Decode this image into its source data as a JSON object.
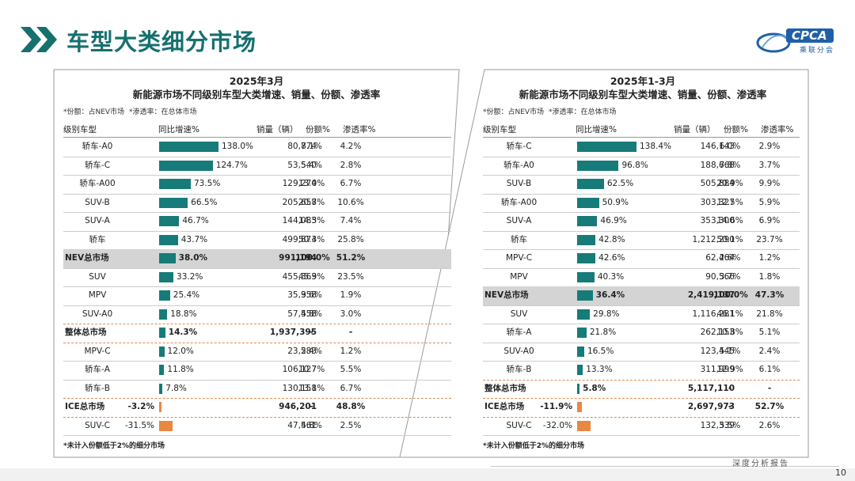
{
  "page": {
    "title": "车型大类细分市场",
    "logo_text": "CPCA",
    "logo_sub": "乘联分会",
    "footer_text": "深度分析报告",
    "page_number": "10"
  },
  "colors": {
    "teal": "#167b79",
    "orange": "#e88843",
    "title": "#16706e",
    "highlight": "#d4d4d4"
  },
  "panels": [
    {
      "title1": "2025年3月",
      "title2": "新能源市场不同级别车型大类增速、销量、份额、渗透率",
      "note1": "*份额：占NEV市场",
      "note2": "*渗透率：在总体市场",
      "headers": {
        "type": "级别车型",
        "growth": "同比增速%",
        "sales": "销量（辆）",
        "share": "份额%",
        "pen": "渗透率%"
      },
      "footnote": "*未计入份额低于2%的细分市场",
      "rows": [
        {
          "name": "轿车-A0",
          "growth": "138.0%",
          "g": 138.0,
          "sales": "80,774",
          "share": "8.1%",
          "pen": "4.2%"
        },
        {
          "name": "轿车-C",
          "growth": "124.7%",
          "g": 124.7,
          "sales": "53,540",
          "share": "5.4%",
          "pen": "2.8%"
        },
        {
          "name": "轿车-A00",
          "growth": "73.5%",
          "g": 73.5,
          "sales": "129,274",
          "share": "13.0%",
          "pen": "6.7%"
        },
        {
          "name": "SUV-B",
          "growth": "66.5%",
          "g": 66.5,
          "sales": "205,658",
          "share": "20.7%",
          "pen": "10.6%"
        },
        {
          "name": "SUV-A",
          "growth": "46.7%",
          "g": 46.7,
          "sales": "144,083",
          "share": "14.5%",
          "pen": "7.4%"
        },
        {
          "name": "轿车",
          "growth": "43.7%",
          "g": 43.7,
          "sales": "499,873",
          "share": "50.4%",
          "pen": "25.8%"
        },
        {
          "name": "NEV总市场",
          "growth": "38.0%",
          "g": 38.0,
          "sales": "991,194",
          "share": "100.0%",
          "pen": "51.2%",
          "bold": true,
          "hl": true
        },
        {
          "name": "SUV",
          "growth": "33.2%",
          "g": 33.2,
          "sales": "455,363",
          "share": "45.9%",
          "pen": "23.5%"
        },
        {
          "name": "MPV",
          "growth": "25.4%",
          "g": 25.4,
          "sales": "35,958",
          "share": "3.6%",
          "pen": "1.9%"
        },
        {
          "name": "SUV-A0",
          "growth": "18.8%",
          "g": 18.8,
          "sales": "57,458",
          "share": "5.8%",
          "pen": "3.0%"
        },
        {
          "name": "整体总市场",
          "growth": "14.3%",
          "g": 14.3,
          "sales": "1,937,395",
          "share": "-",
          "pen": "-",
          "bold": true,
          "dashed": true
        },
        {
          "name": "MPV-C",
          "growth": "12.0%",
          "g": 12.0,
          "sales": "23,583",
          "share": "2.4%",
          "pen": "1.2%"
        },
        {
          "name": "轿车-A",
          "growth": "11.8%",
          "g": 11.8,
          "sales": "106,127",
          "share": "10.7%",
          "pen": "5.5%"
        },
        {
          "name": "轿车-B",
          "growth": "7.8%",
          "g": 7.8,
          "sales": "130,158",
          "share": "13.1%",
          "pen": "6.7%"
        },
        {
          "name": "ICE总市场",
          "growth": "-3.2%",
          "g": -3.2,
          "sales": "946,201",
          "share": "-",
          "pen": "48.8%",
          "bold": true,
          "dashed": true
        },
        {
          "name": "SUV-C",
          "growth": "-31.5%",
          "g": -31.5,
          "sales": "47,561",
          "share": "4.8%",
          "pen": "2.5%"
        }
      ]
    },
    {
      "title1": "2025年1-3月",
      "title2": "新能源市场不同级别车型大类增速、销量、份额、渗透率",
      "note1": "*份额：占NEV市场",
      "note2": "*渗透率：在总体市场",
      "headers": {
        "type": "级别车型",
        "growth": "同比增速%",
        "sales": "销量（辆）",
        "share": "份额%",
        "pen": "渗透率%"
      },
      "footnote": "*未计入份额低于2%的细分市场",
      "rows": [
        {
          "name": "轿车-C",
          "growth": "138.4%",
          "g": 138.4,
          "sales": "146,143",
          "share": "6.0%",
          "pen": "2.9%"
        },
        {
          "name": "轿车-A0",
          "growth": "96.8%",
          "g": 96.8,
          "sales": "188,668",
          "share": "7.8%",
          "pen": "3.7%"
        },
        {
          "name": "SUV-B",
          "growth": "62.5%",
          "g": 62.5,
          "sales": "505,884",
          "share": "20.9%",
          "pen": "9.9%"
        },
        {
          "name": "轿车-A00",
          "growth": "50.9%",
          "g": 50.9,
          "sales": "303,327",
          "share": "12.5%",
          "pen": "5.9%"
        },
        {
          "name": "SUV-A",
          "growth": "46.9%",
          "g": 46.9,
          "sales": "353,300",
          "share": "14.6%",
          "pen": "6.9%"
        },
        {
          "name": "轿车",
          "growth": "42.8%",
          "g": 42.8,
          "sales": "1,212,290",
          "share": "50.1%",
          "pen": "23.7%"
        },
        {
          "name": "MPV-C",
          "growth": "42.6%",
          "g": 42.6,
          "sales": "62,464",
          "share": "2.6%",
          "pen": "1.2%"
        },
        {
          "name": "MPV",
          "growth": "40.3%",
          "g": 40.3,
          "sales": "90,566",
          "share": "3.7%",
          "pen": "1.8%"
        },
        {
          "name": "NEV总市场",
          "growth": "36.4%",
          "g": 36.4,
          "sales": "2,419,137",
          "share": "100.0%",
          "pen": "47.3%",
          "bold": true,
          "hl": true
        },
        {
          "name": "SUV",
          "growth": "29.8%",
          "g": 29.8,
          "sales": "1,116,281",
          "share": "46.1%",
          "pen": "21.8%"
        },
        {
          "name": "轿车-A",
          "growth": "21.8%",
          "g": 21.8,
          "sales": "262,153",
          "share": "10.8%",
          "pen": "5.1%"
        },
        {
          "name": "SUV-A0",
          "growth": "16.5%",
          "g": 16.5,
          "sales": "123,445",
          "share": "5.1%",
          "pen": "2.4%"
        },
        {
          "name": "轿车-B",
          "growth": "13.3%",
          "g": 13.3,
          "sales": "311,999",
          "share": "12.9%",
          "pen": "6.1%"
        },
        {
          "name": "整体总市场",
          "growth": "5.8%",
          "g": 5.8,
          "sales": "5,117,110",
          "share": "-",
          "pen": "-",
          "bold": true,
          "dashed": true
        },
        {
          "name": "ICE总市场",
          "growth": "-11.9%",
          "g": -11.9,
          "sales": "2,697,973",
          "share": "-",
          "pen": "52.7%",
          "bold": true,
          "dashed": true
        },
        {
          "name": "SUV-C",
          "growth": "-32.0%",
          "g": -32.0,
          "sales": "132,339",
          "share": "5.5%",
          "pen": "2.6%"
        }
      ]
    }
  ],
  "chart_data": [
    {
      "type": "bar",
      "title": "2025年3月 新能源市场不同级别车型大类增速、销量、份额、渗透率",
      "xlabel": "同比增速%",
      "ylabel": "级别车型",
      "categories": [
        "轿车-A0",
        "轿车-C",
        "轿车-A00",
        "SUV-B",
        "SUV-A",
        "轿车",
        "NEV总市场",
        "SUV",
        "MPV",
        "SUV-A0",
        "整体总市场",
        "MPV-C",
        "轿车-A",
        "轿车-B",
        "ICE总市场",
        "SUV-C"
      ],
      "values": [
        138.0,
        124.7,
        73.5,
        66.5,
        46.7,
        43.7,
        38.0,
        33.2,
        25.4,
        18.8,
        14.3,
        12.0,
        11.8,
        7.8,
        -3.2,
        -31.5
      ]
    },
    {
      "type": "bar",
      "title": "2025年1-3月 新能源市场不同级别车型大类增速、销量、份额、渗透率",
      "xlabel": "同比增速%",
      "ylabel": "级别车型",
      "categories": [
        "轿车-C",
        "轿车-A0",
        "SUV-B",
        "轿车-A00",
        "SUV-A",
        "轿车",
        "MPV-C",
        "MPV",
        "NEV总市场",
        "SUV",
        "轿车-A",
        "SUV-A0",
        "轿车-B",
        "整体总市场",
        "ICE总市场",
        "SUV-C"
      ],
      "values": [
        138.4,
        96.8,
        62.5,
        50.9,
        46.9,
        42.8,
        42.6,
        40.3,
        36.4,
        29.8,
        21.8,
        16.5,
        13.3,
        5.8,
        -11.9,
        -32.0
      ]
    }
  ]
}
